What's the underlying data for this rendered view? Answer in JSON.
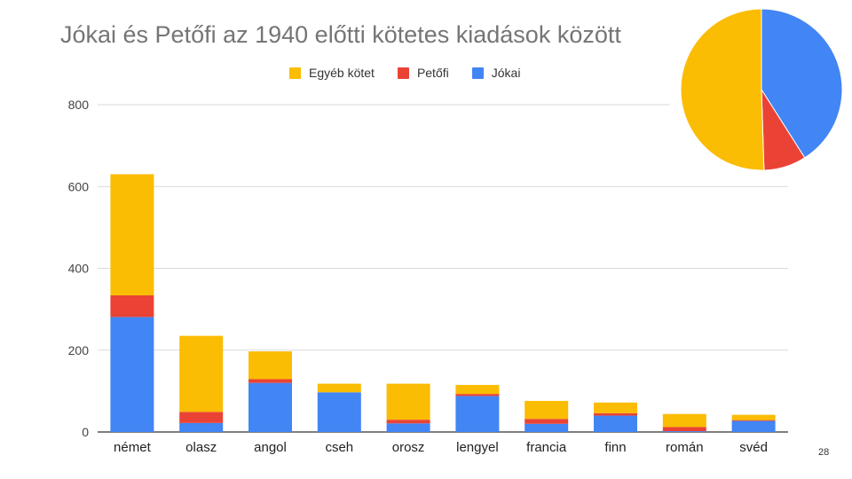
{
  "slide": {
    "page_number": "28"
  },
  "colors": {
    "egyeb": "#FBBC04",
    "petofi": "#EA4335",
    "jokai": "#4285F4",
    "grid": "#d9d9d9",
    "axis_text": "#444444"
  },
  "chart_data": [
    {
      "type": "bar",
      "stacked": true,
      "title": "Jókai és Petőfi az 1940 előtti kötetes kiadások között",
      "xlabel": "",
      "ylabel": "",
      "ylim": [
        0,
        800
      ],
      "yticks": [
        "0",
        "200",
        "400",
        "600",
        "800"
      ],
      "grid": true,
      "legend_position": "top",
      "categories": [
        "német",
        "olasz",
        "angol",
        "cseh",
        "orosz",
        "lengyel",
        "francia",
        "finn",
        "román",
        "svéd"
      ],
      "series": [
        {
          "name": "Jókai",
          "color": "#4285F4",
          "values": [
            281,
            22,
            120,
            97,
            21,
            88,
            20,
            40,
            2,
            27
          ]
        },
        {
          "name": "Petőfi",
          "color": "#EA4335",
          "values": [
            53,
            27,
            9,
            0,
            9,
            5,
            12,
            6,
            10,
            2
          ]
        },
        {
          "name": "Egyéb kötet",
          "color": "#FBBC04",
          "values": [
            296,
            186,
            68,
            21,
            88,
            22,
            44,
            26,
            32,
            13
          ]
        }
      ],
      "legend_order": [
        "Egyéb kötet",
        "Petőfi",
        "Jókai"
      ]
    },
    {
      "type": "pie",
      "title": "",
      "legend": false,
      "slices": [
        {
          "color": "#4285F4",
          "value": 41
        },
        {
          "color": "#EA4335",
          "value": 8.5
        },
        {
          "color": "#FBBC04",
          "value": 50.5
        }
      ]
    }
  ]
}
